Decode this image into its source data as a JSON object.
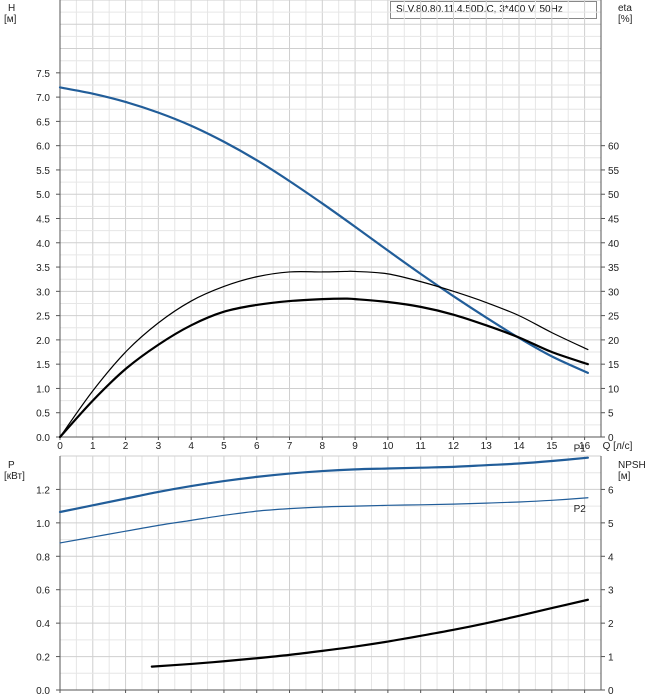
{
  "model_label": "SLV.80.80.11.4.50D.C, 3*400 V, 50Hz",
  "chart_data": [
    {
      "type": "line",
      "name": "head-efficiency",
      "x_axis": {
        "label": "Q [л/с]",
        "min": 0,
        "max": 16.5,
        "ticks": [
          0,
          1,
          2,
          3,
          4,
          5,
          6,
          7,
          8,
          9,
          10,
          11,
          12,
          13,
          14,
          15,
          16
        ]
      },
      "y_left": {
        "label_line1": "H",
        "label_line2": "[м]",
        "min": 0,
        "max": 9,
        "ticks": [
          0,
          0.5,
          1,
          1.5,
          2,
          2.5,
          3,
          3.5,
          4,
          4.5,
          5,
          5.5,
          6,
          6.5,
          7,
          7.5
        ],
        "tick_labels": [
          "0.0",
          "0.5",
          "1.0",
          "1.5",
          "2.0",
          "2.5",
          "3.0",
          "3.5",
          "4.0",
          "4.5",
          "5.0",
          "5.5",
          "6.0",
          "6.5",
          "7.0",
          "7.5"
        ]
      },
      "y_right": {
        "label_line1": "eta",
        "label_line2": "[%]",
        "min": 0,
        "max": 90,
        "ticks": [
          0,
          5,
          10,
          15,
          20,
          25,
          30,
          35,
          40,
          45,
          50,
          55,
          60
        ]
      },
      "grid": true,
      "series": [
        {
          "key": "H",
          "axis": "left",
          "color": "#215d99",
          "width": 2.2,
          "x": [
            0,
            1,
            2,
            3,
            4,
            5,
            6,
            7,
            8,
            9,
            10,
            11,
            12,
            13,
            14,
            15,
            16.1
          ],
          "y": [
            7.2,
            7.07,
            6.9,
            6.68,
            6.41,
            6.08,
            5.7,
            5.27,
            4.81,
            4.33,
            3.84,
            3.36,
            2.9,
            2.46,
            2.04,
            1.66,
            1.32
          ]
        },
        {
          "key": "eta_pump",
          "axis": "right",
          "color": "#000000",
          "width": 1.2,
          "x": [
            0,
            1,
            2,
            3,
            4,
            5,
            6,
            7,
            8,
            8.7,
            9,
            10,
            11,
            12,
            13,
            14,
            15,
            16.1
          ],
          "y": [
            0,
            9.5,
            17.5,
            23.5,
            28,
            31,
            33,
            34,
            34,
            34.1,
            34.1,
            33.6,
            32,
            30,
            27.7,
            25,
            21.5,
            18
          ]
        },
        {
          "key": "eta_total",
          "axis": "right",
          "color": "#000000",
          "width": 2.2,
          "x": [
            0,
            1,
            2,
            3,
            4,
            5,
            6,
            7,
            8,
            8.7,
            9,
            10,
            11,
            12,
            13,
            14,
            15,
            16.1
          ],
          "y": [
            0,
            7.5,
            14,
            19,
            23,
            25.8,
            27.2,
            28,
            28.4,
            28.5,
            28.4,
            27.8,
            26.8,
            25.2,
            23,
            20.5,
            17.5,
            15
          ]
        }
      ]
    },
    {
      "type": "line",
      "name": "power-npsh",
      "x_axis": {
        "min": 0,
        "max": 16.5,
        "ticks": [
          0,
          1,
          2,
          3,
          4,
          5,
          6,
          7,
          8,
          9,
          10,
          11,
          12,
          13,
          14,
          15,
          16
        ]
      },
      "y_left": {
        "label_line1": "P",
        "label_line2": "[кВт]",
        "min": 0,
        "max": 1.4,
        "ticks": [
          0,
          0.2,
          0.4,
          0.6,
          0.8,
          1.0,
          1.2
        ],
        "tick_labels": [
          "0.0",
          "0.2",
          "0.4",
          "0.6",
          "0.8",
          "1.0",
          "1.2"
        ]
      },
      "y_right": {
        "label_line1": "NPSH",
        "label_line2": "[м]",
        "min": 0,
        "max": 7,
        "ticks": [
          0,
          1,
          2,
          3,
          4,
          5,
          6
        ]
      },
      "grid": true,
      "series": [
        {
          "key": "P1",
          "name": "P1",
          "axis": "left",
          "color": "#215d99",
          "width": 2.2,
          "x": [
            0,
            1,
            2,
            3,
            4,
            5,
            6,
            7,
            8,
            9,
            10,
            11,
            12,
            13,
            14,
            15,
            16.1
          ],
          "y": [
            1.065,
            1.105,
            1.145,
            1.185,
            1.22,
            1.25,
            1.275,
            1.295,
            1.31,
            1.32,
            1.325,
            1.33,
            1.335,
            1.345,
            1.355,
            1.37,
            1.39
          ]
        },
        {
          "key": "P2",
          "name": "P2",
          "axis": "left",
          "color": "#215d99",
          "width": 1.2,
          "x": [
            0,
            1,
            2,
            3,
            4,
            5,
            6,
            7,
            8,
            9,
            10,
            11,
            12,
            13,
            14,
            15,
            16.1
          ],
          "y": [
            0.88,
            0.915,
            0.95,
            0.985,
            1.015,
            1.045,
            1.07,
            1.085,
            1.095,
            1.1,
            1.105,
            1.108,
            1.112,
            1.118,
            1.125,
            1.135,
            1.15
          ]
        },
        {
          "key": "NPSH",
          "axis": "right",
          "color": "#000000",
          "width": 2.2,
          "x": [
            2.8,
            4,
            5,
            6,
            7,
            8,
            9,
            10,
            11,
            12,
            13,
            14,
            15,
            16.1
          ],
          "y": [
            0.7,
            0.78,
            0.86,
            0.95,
            1.05,
            1.17,
            1.3,
            1.45,
            1.62,
            1.8,
            2.0,
            2.22,
            2.45,
            2.7
          ]
        }
      ]
    }
  ]
}
